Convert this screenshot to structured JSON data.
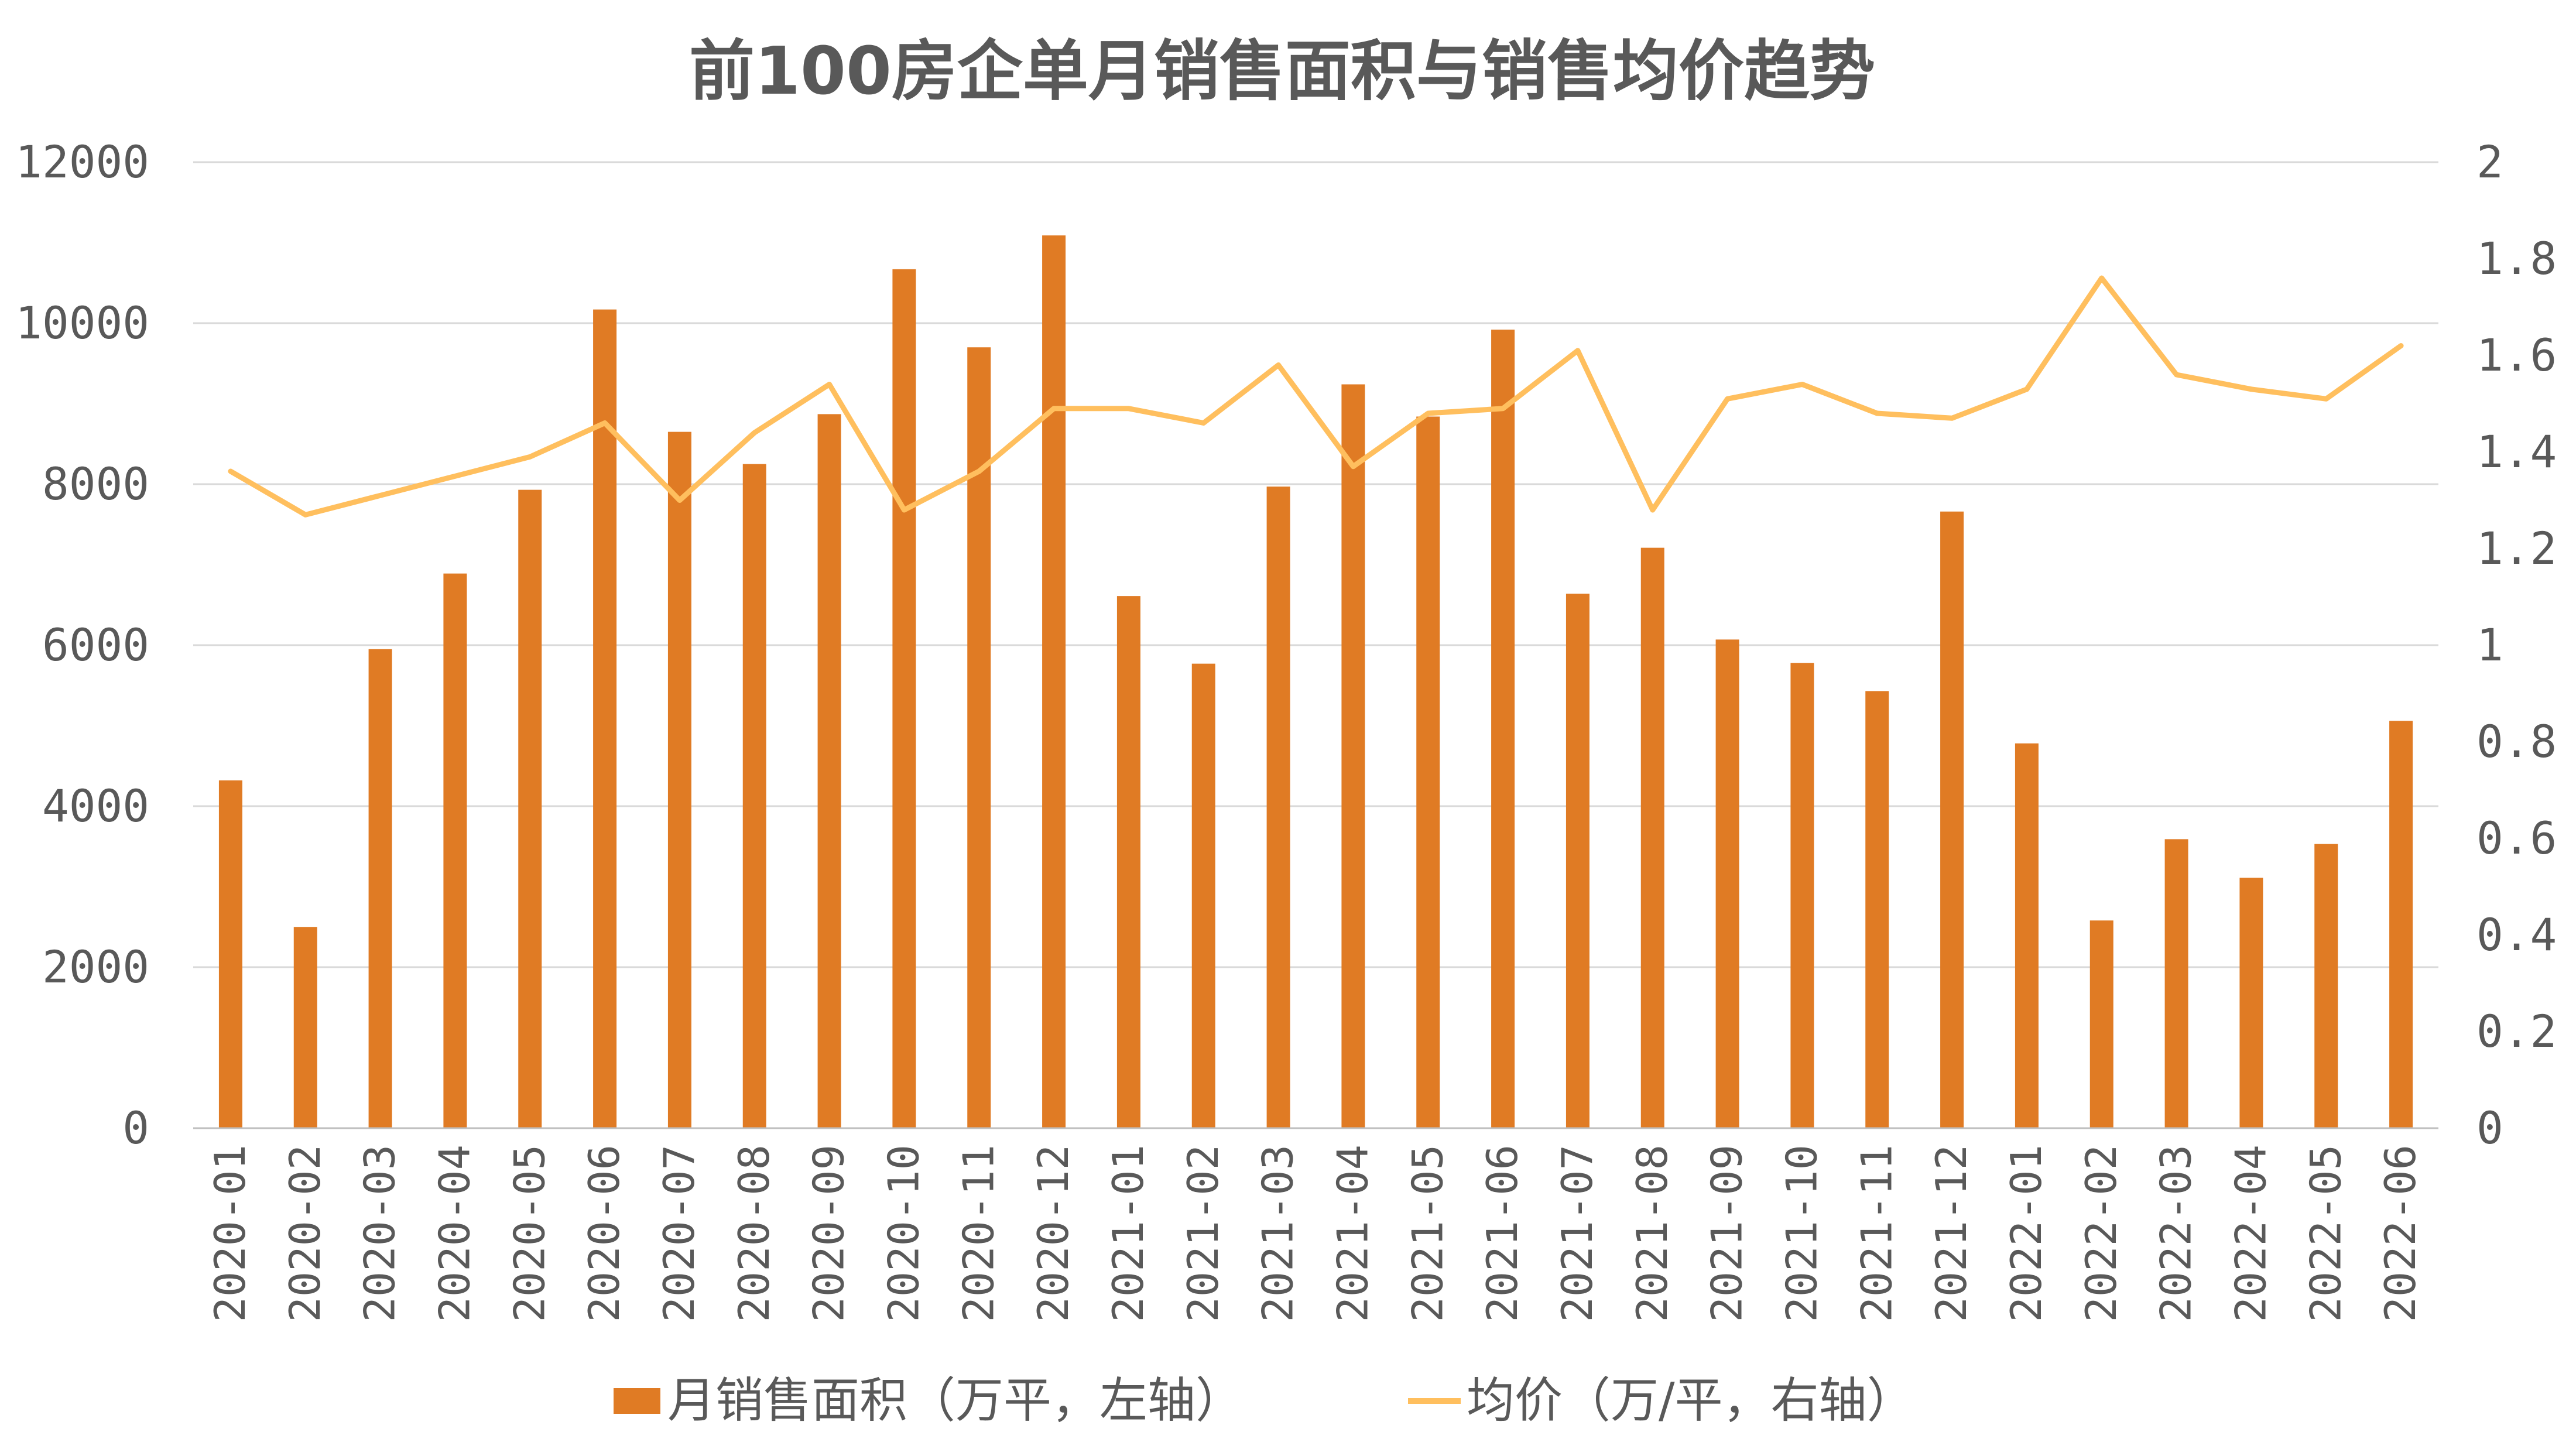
{
  "chart_data": {
    "type": "bar",
    "title": "前100房企单月销售面积与销售均价趋势",
    "categories": [
      "2020-01",
      "2020-02",
      "2020-03",
      "2020-04",
      "2020-05",
      "2020-06",
      "2020-07",
      "2020-08",
      "2020-09",
      "2020-10",
      "2020-11",
      "2020-12",
      "2021-01",
      "2021-02",
      "2021-03",
      "2021-04",
      "2021-05",
      "2021-06",
      "2021-07",
      "2021-08",
      "2021-09",
      "2021-10",
      "2021-11",
      "2021-12",
      "2022-01",
      "2022-02",
      "2022-03",
      "2022-04",
      "2022-05",
      "2022-06"
    ],
    "series": [
      {
        "name": "月销售面积（万平，左轴）",
        "type": "bar",
        "axis": "left",
        "color": "#E07B24",
        "values": [
          4320,
          2500,
          5950,
          6890,
          7930,
          10170,
          8650,
          8250,
          8870,
          10670,
          9700,
          11090,
          6610,
          5770,
          7970,
          9240,
          8840,
          9920,
          6640,
          7210,
          6070,
          5780,
          5430,
          7660,
          4780,
          2580,
          3590,
          3110,
          3530,
          5060
        ]
      },
      {
        "name": "均价（万/平，右轴）",
        "type": "line",
        "axis": "right",
        "color": "#FFBF5E",
        "values": [
          1.36,
          1.27,
          1.31,
          1.35,
          1.39,
          1.46,
          1.3,
          1.44,
          1.54,
          1.28,
          1.36,
          1.49,
          1.49,
          1.46,
          1.58,
          1.37,
          1.48,
          1.49,
          1.61,
          1.28,
          1.51,
          1.54,
          1.48,
          1.47,
          1.53,
          1.76,
          1.56,
          1.53,
          1.51,
          1.62
        ]
      }
    ],
    "y_left": {
      "min": 0,
      "max": 12000,
      "ticks": [
        "0",
        "2000",
        "4000",
        "6000",
        "8000",
        "10000",
        "12000"
      ]
    },
    "y_right": {
      "min": 0,
      "max": 2,
      "ticks": [
        "0",
        "0.2",
        "0.4",
        "0.6",
        "0.8",
        "1",
        "1.2",
        "1.4",
        "1.6",
        "1.8",
        "2"
      ]
    },
    "grid": true,
    "legend": {
      "placement": "bottom",
      "items": [
        "月销售面积（万平，左轴）",
        "均价（万/平，右轴）"
      ]
    }
  }
}
